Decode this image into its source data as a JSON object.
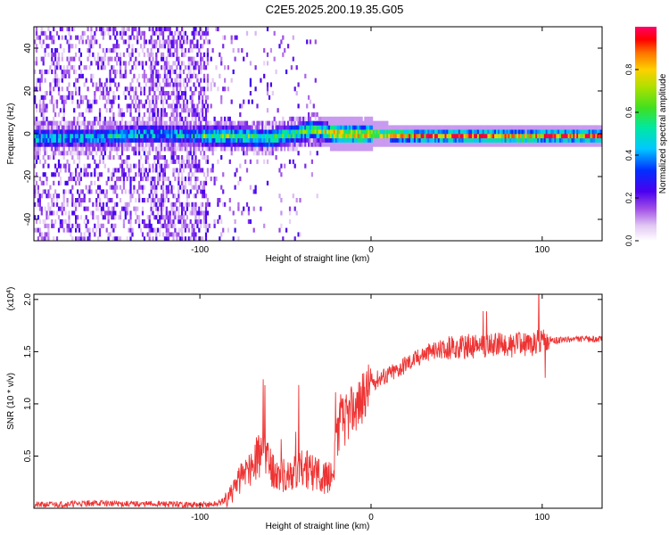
{
  "title": "C2E5.2025.200.19.35.G05",
  "chart_data": [
    {
      "type": "heatmap",
      "title": "C2E5.2025.200.19.35.G05",
      "xlabel": "Height of straight line (km)",
      "ylabel": "Frequency (Hz)",
      "xlim": [
        -197,
        135
      ],
      "ylim": [
        -50,
        50
      ],
      "x_ticks": [
        -100,
        0,
        100
      ],
      "y_ticks": [
        -40,
        -20,
        0,
        20,
        40
      ],
      "colorbar": {
        "label": "Normalized spectral amplitude",
        "range": [
          0,
          1
        ],
        "ticks": [
          "0.0",
          "0.2",
          "0.4",
          "0.6",
          "0.8"
        ]
      },
      "ridge": {
        "x": [
          -197,
          -160,
          -130,
          -95,
          -80,
          -60,
          -45,
          -35,
          -25,
          -15,
          -5,
          0,
          10,
          30,
          50,
          70,
          90,
          100,
          110,
          135
        ],
        "y": [
          -2,
          -1.5,
          0,
          -1,
          -1,
          -2,
          0,
          2,
          0.5,
          0,
          -0.5,
          0,
          -0.5,
          -1,
          -1,
          -1,
          -1.5,
          -1,
          -1,
          -1
        ]
      }
    },
    {
      "type": "line",
      "xlabel": "Height of straight line (km)",
      "ylabel": "SNR (10 * v/v)",
      "y_multiplier": "(x10",
      "y_multiplier_exp": "4",
      "y_multiplier_close": ")",
      "xlim": [
        -197,
        135
      ],
      "ylim": [
        0,
        2.05
      ],
      "x_ticks": [
        -100,
        0,
        100
      ],
      "y_ticks": [
        0.5,
        1.0,
        1.5,
        2.0
      ],
      "y_tick_labels": [
        "0.5",
        "1.0",
        "1.5",
        "2.0"
      ],
      "series": [
        {
          "color": "#ee3333",
          "x": [
            -197,
            -180,
            -160,
            -140,
            -120,
            -100,
            -90,
            -85,
            -80,
            -75,
            -70,
            -65,
            -62,
            -60,
            -55,
            -50,
            -45,
            -40,
            -35,
            -30,
            -25,
            -22,
            -20,
            -18,
            -15,
            -10,
            -5,
            0,
            5,
            10,
            15,
            20,
            25,
            30,
            35,
            40,
            45,
            50,
            55,
            60,
            65,
            70,
            75,
            80,
            85,
            90,
            95,
            98,
            100,
            105,
            110,
            120,
            135
          ],
          "y": [
            0.03,
            0.04,
            0.05,
            0.04,
            0.04,
            0.03,
            0.04,
            0.08,
            0.2,
            0.3,
            0.4,
            0.5,
            0.6,
            0.45,
            0.35,
            0.3,
            0.35,
            0.4,
            0.35,
            0.3,
            0.3,
            0.3,
            0.7,
            0.85,
            0.85,
            0.95,
            1.05,
            1.2,
            1.25,
            1.28,
            1.32,
            1.38,
            1.42,
            1.47,
            1.5,
            1.52,
            1.53,
            1.54,
            1.55,
            1.55,
            1.56,
            1.56,
            1.57,
            1.56,
            1.57,
            1.57,
            1.58,
            1.6,
            1.6,
            1.6,
            1.61,
            1.62,
            1.62
          ]
        }
      ]
    }
  ]
}
